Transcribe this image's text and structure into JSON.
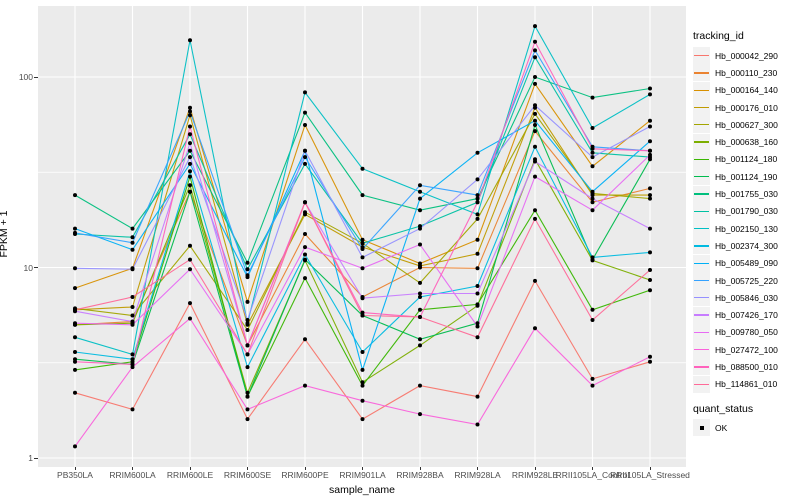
{
  "chart_data": {
    "type": "line",
    "xlabel": "sample_name",
    "ylabel": "FPKM + 1",
    "x_categories": [
      "PB350LA",
      "RRIM600LA",
      "RRIM600LE",
      "RRIM600SE",
      "RRIM600PE",
      "RRIM901LA",
      "RRIM928BA",
      "RRIM928LA",
      "RRIM928LE",
      "RRII105LA_Control",
      "RRII105LA_Stressed"
    ],
    "y_scale": "log10",
    "y_ticks": [
      1,
      10,
      100
    ],
    "y_minor_ticks": [
      3.162,
      31.62
    ],
    "ylim": [
      1,
      236
    ],
    "panel_bg": "#EBEBEB",
    "grid_color": "#FFFFFF",
    "point_color": "#000000",
    "legend_title": "tracking_id",
    "legend2_title": "quant_status",
    "legend2_items": [
      "OK"
    ],
    "series": [
      {
        "name": "Hb_000042_290",
        "color": "#F8766D",
        "values": [
          2.2,
          1.8,
          6.5,
          1.6,
          4.2,
          1.6,
          2.4,
          2.1,
          8.5,
          2.6,
          3.2
        ]
      },
      {
        "name": "Hb_000110_230",
        "color": "#EA8331",
        "values": [
          5.0,
          5.2,
          25,
          3.9,
          15,
          7.0,
          10,
          9.9,
          52,
          22,
          26
        ]
      },
      {
        "name": "Hb_000164_140",
        "color": "#D89000",
        "values": [
          7.8,
          9.9,
          69,
          6.6,
          56,
          14,
          10.5,
          14,
          92,
          34,
          59
        ]
      },
      {
        "name": "Hb_000176_010",
        "color": "#C09B00",
        "values": [
          6.0,
          6.2,
          63,
          5.0,
          19,
          12.8,
          10.2,
          11.8,
          69,
          24,
          24
        ]
      },
      {
        "name": "Hb_000627_300",
        "color": "#A3A500",
        "values": [
          6.1,
          5.6,
          13,
          4.7,
          19.5,
          13.4,
          8.3,
          18,
          64,
          24.5,
          23
        ]
      },
      {
        "name": "Hb_000638_160",
        "color": "#7CAE00",
        "values": [
          5.0,
          5.1,
          27,
          2.2,
          10.9,
          2.5,
          3.9,
          6.3,
          37,
          10.9,
          8.6
        ]
      },
      {
        "name": "Hb_001124_180",
        "color": "#39B600",
        "values": [
          2.9,
          3.2,
          30,
          2.1,
          8.8,
          2.4,
          6.0,
          6.4,
          20,
          6.0,
          7.6
        ]
      },
      {
        "name": "Hb_001124_190",
        "color": "#00BB4E",
        "values": [
          3.3,
          3.1,
          25,
          2.1,
          11,
          5.6,
          4.2,
          5.1,
          56,
          11,
          37
        ]
      },
      {
        "name": "Hb_001755_030",
        "color": "#00BF7D",
        "values": [
          24,
          16,
          41,
          10.6,
          65,
          24,
          20,
          23,
          100,
          78,
          87
        ]
      },
      {
        "name": "Hb_001790_030",
        "color": "#00C1A3",
        "values": [
          15,
          14.4,
          50,
          9.8,
          35,
          13.4,
          16.5,
          22,
          127,
          40,
          38
        ]
      },
      {
        "name": "Hb_002150_130",
        "color": "#00BFC4",
        "values": [
          4.3,
          3.5,
          156,
          5.1,
          83,
          33,
          25,
          19,
          185,
          54,
          81
        ]
      },
      {
        "name": "Hb_002374_300",
        "color": "#00BAE0",
        "values": [
          3.6,
          3.3,
          32,
          3.0,
          11.7,
          3.6,
          7.0,
          8.0,
          43,
          11.3,
          12
        ]
      },
      {
        "name": "Hb_005489_090",
        "color": "#00B0F6",
        "values": [
          16,
          12.4,
          35,
          8.9,
          41,
          2.9,
          23,
          40,
          59,
          25,
          46
        ]
      },
      {
        "name": "Hb_005725_220",
        "color": "#35A2FF",
        "values": [
          15.2,
          13.5,
          66,
          9.1,
          38,
          12.5,
          27,
          24,
          138,
          43,
          41
        ]
      },
      {
        "name": "Hb_005846_030",
        "color": "#9590FF",
        "values": [
          9.9,
          9.8,
          38,
          5.3,
          41,
          11.3,
          16,
          29,
          71,
          38,
          55
        ]
      },
      {
        "name": "Hb_007426_170",
        "color": "#C77CFF",
        "values": [
          5.9,
          5.2,
          45,
          3.9,
          22,
          6.9,
          7.3,
          7.3,
          36,
          23,
          16
        ]
      },
      {
        "name": "Hb_009780_050",
        "color": "#E76BF3",
        "values": [
          5.1,
          5.0,
          9.8,
          3.5,
          12.8,
          9.9,
          13.2,
          4.9,
          30,
          20,
          39
        ]
      },
      {
        "name": "Hb_027472_100",
        "color": "#FA62DB",
        "values": [
          1.15,
          3.0,
          5.4,
          1.8,
          2.4,
          2.0,
          1.7,
          1.5,
          4.8,
          2.4,
          3.4
        ]
      },
      {
        "name": "Hb_088500_010",
        "color": "#FF62BC",
        "values": [
          3.2,
          3.1,
          55,
          3.9,
          22,
          5.8,
          5.5,
          22,
          153,
          42,
          41
        ]
      },
      {
        "name": "Hb_114861_010",
        "color": "#FF6A98",
        "values": [
          6.0,
          7.0,
          11,
          3.5,
          22,
          5.6,
          5.5,
          4.3,
          18,
          5.3,
          9.7
        ]
      }
    ]
  }
}
